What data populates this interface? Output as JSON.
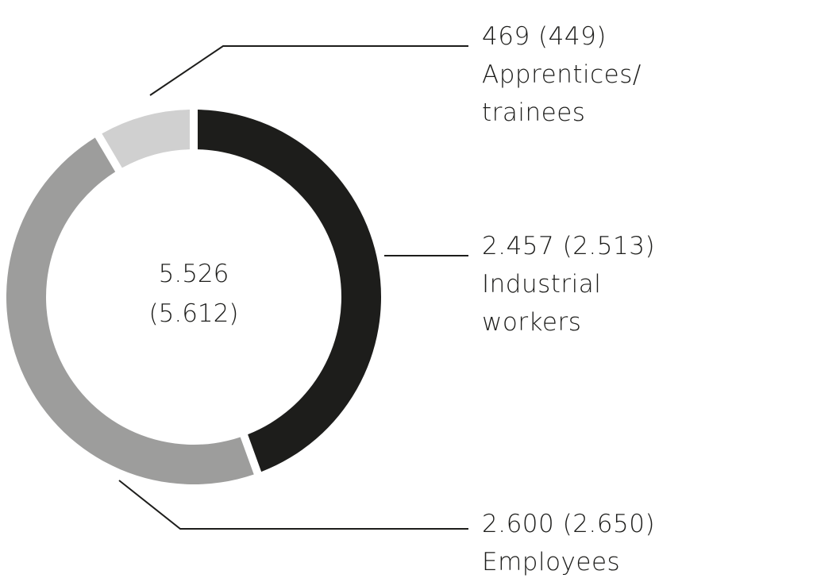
{
  "chart_data": {
    "type": "pie",
    "donut": true,
    "total": {
      "value": "5.526",
      "previous": "(5.612)"
    },
    "slices": [
      {
        "name": "Industrial workers",
        "value": 2457,
        "value_label": "2.457 (2.513)",
        "label_lines": [
          "Industrial",
          "workers"
        ],
        "color": "#1d1d1b"
      },
      {
        "name": "Employees",
        "value": 2600,
        "value_label": "2.600 (2.650)",
        "label_lines": [
          "Employees"
        ],
        "color": "#9d9d9c"
      },
      {
        "name": "Apprentices/trainees",
        "value": 469,
        "value_label": "469 (449)",
        "label_lines": [
          "Apprentices/",
          "trainees"
        ],
        "color": "#d0d0d0"
      }
    ]
  }
}
